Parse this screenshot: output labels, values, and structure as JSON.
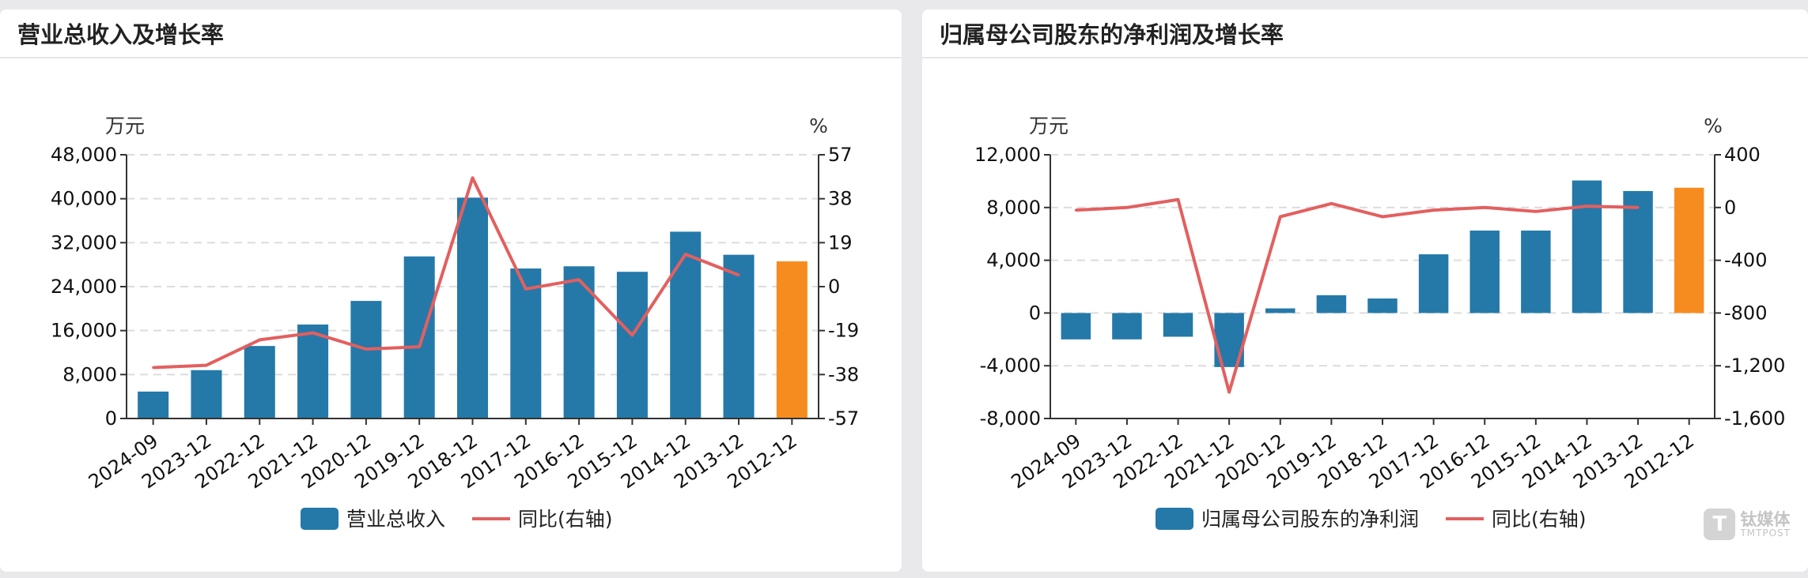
{
  "colors": {
    "bar": "#2479a9",
    "bar_highlight": "#f68c1f",
    "line": "#e35f5f",
    "grid": "#dcdcdc",
    "axis": "#333333"
  },
  "watermark": {
    "logo": "T",
    "name": "钛媒体",
    "sub": "TMTPOST"
  },
  "chart_data": [
    {
      "type": "bar",
      "title": "营业总收入及增长率",
      "left_unit": "万元",
      "right_unit": "%",
      "categories": [
        "2024-09",
        "2023-12",
        "2022-12",
        "2021-12",
        "2020-12",
        "2019-12",
        "2018-12",
        "2017-12",
        "2016-12",
        "2015-12",
        "2014-12",
        "2013-12",
        "2012-12"
      ],
      "y_ticks": [
        "0",
        "8,000",
        "16,000",
        "24,000",
        "32,000",
        "40,000",
        "48,000"
      ],
      "y2_ticks": [
        "-57",
        "-38",
        "-19",
        "0",
        "19",
        "38",
        "57"
      ],
      "ylim": [
        0,
        48000
      ],
      "y2lim": [
        -57,
        57
      ],
      "highlight_index": 12,
      "grid": true,
      "legend_position": "bottom",
      "series": [
        {
          "name": "营业总收入",
          "type": "bar",
          "axis": "left",
          "values": [
            4900,
            8800,
            13200,
            17100,
            21400,
            29500,
            40200,
            27300,
            27700,
            26700,
            34000,
            29800,
            28600
          ]
        },
        {
          "name": "同比(右轴)",
          "type": "line",
          "axis": "right",
          "values": [
            -35,
            -34,
            -23,
            -20,
            -27,
            -26,
            47,
            -1,
            3,
            -21,
            14,
            5,
            null
          ]
        }
      ]
    },
    {
      "type": "bar",
      "title": "归属母公司股东的净利润及增长率",
      "left_unit": "万元",
      "right_unit": "%",
      "categories": [
        "2024-09",
        "2023-12",
        "2022-12",
        "2021-12",
        "2020-12",
        "2019-12",
        "2018-12",
        "2017-12",
        "2016-12",
        "2015-12",
        "2014-12",
        "2013-12",
        "2012-12"
      ],
      "y_ticks": [
        "-8,000",
        "-4,000",
        "0",
        "4,000",
        "8,000",
        "12,000"
      ],
      "y2_ticks": [
        "-1,600",
        "-1,200",
        "-800",
        "-400",
        "0",
        "400"
      ],
      "ylim": [
        -8000,
        12000
      ],
      "y2lim": [
        -1600,
        400
      ],
      "highlight_index": 12,
      "grid": true,
      "legend_position": "bottom",
      "series": [
        {
          "name": "归属母公司股东的净利润",
          "type": "bar",
          "axis": "left",
          "values": [
            -2000,
            -2000,
            -1800,
            -4100,
            350,
            1350,
            1100,
            4450,
            6250,
            6250,
            10050,
            9250,
            9500
          ]
        },
        {
          "name": "同比(右轴)",
          "type": "line",
          "axis": "right",
          "values": [
            -20,
            0,
            60,
            -1400,
            -70,
            30,
            -70,
            -20,
            0,
            -30,
            10,
            0,
            null
          ]
        }
      ]
    }
  ]
}
